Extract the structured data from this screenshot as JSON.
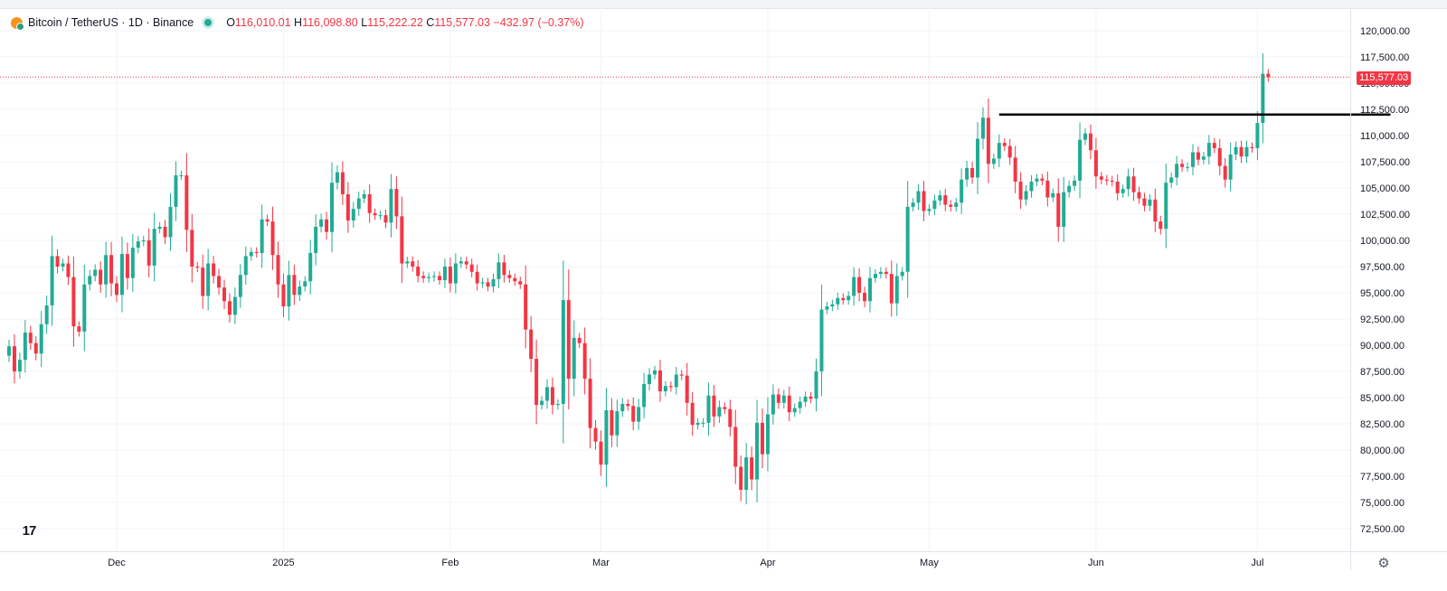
{
  "header": {
    "symbol": "Bitcoin / TetherUS · 1D · Binance",
    "open_label": "O",
    "open": "116,010.01",
    "high_label": "H",
    "high": "116,098.80",
    "low_label": "L",
    "low": "115,222.22",
    "close_label": "C",
    "close": "115,577.03",
    "change": "−432.97 (−0.37%)"
  },
  "icons": {
    "coin": "bitcoin-tether-icon",
    "status": "market-open-dot-icon",
    "logo": "tradingview-logo-icon",
    "logo_text": "17",
    "settings": "gear-icon",
    "settings_glyph": "⚙"
  },
  "colors": {
    "up": "#22ab94",
    "down": "#f23645",
    "grid": "#f0f3fa",
    "text": "#131722",
    "axis_text": "#131722",
    "resistance": "#000000"
  },
  "last_price_tag": "115,577.03",
  "chart_data": {
    "type": "candlestick",
    "title": "Bitcoin / TetherUS · 1D · Binance",
    "ylim": [
      70000,
      122000
    ],
    "y_ticks": [
      72500,
      75000,
      77500,
      80000,
      82500,
      85000,
      87500,
      90000,
      92500,
      95000,
      97500,
      100000,
      102500,
      105000,
      107500,
      110000,
      112500,
      115000,
      117500,
      120000
    ],
    "y_tick_labels": [
      "72,500.00",
      "75,000.00",
      "77,500.00",
      "80,000.00",
      "82,500.00",
      "85,000.00",
      "87,500.00",
      "90,000.00",
      "92,500.00",
      "95,000.00",
      "97,500.00",
      "100,000.00",
      "102,500.00",
      "105,000.00",
      "107,500.00",
      "110,000.00",
      "112,500.00",
      "115,000.00",
      "117,500.00",
      "120,000.00"
    ],
    "x_labels": [
      {
        "label": "Dec",
        "index": 20
      },
      {
        "label": "2025",
        "index": 51
      },
      {
        "label": "Feb",
        "index": 82
      },
      {
        "label": "Mar",
        "index": 110
      },
      {
        "label": "Apr",
        "index": 141
      },
      {
        "label": "May",
        "index": 171
      },
      {
        "label": "Jun",
        "index": 202
      },
      {
        "label": "Jul",
        "index": 232
      }
    ],
    "last_price": 115577.03,
    "resistance_level": 112000,
    "resistance_from_index": 184,
    "resistance_to_index": 250,
    "closes": [
      89900,
      87500,
      88600,
      91200,
      90200,
      89200,
      92000,
      93800,
      98500,
      97500,
      97800,
      96500,
      91800,
      91300,
      95800,
      96600,
      97200,
      95800,
      98600,
      95900,
      94800,
      98700,
      96400,
      99300,
      99900,
      100000,
      97600,
      101100,
      101300,
      100300,
      103200,
      106200,
      106200,
      101000,
      97500,
      97400,
      94700,
      97800,
      96600,
      95500,
      94200,
      92900,
      94600,
      96700,
      98500,
      98900,
      98800,
      102000,
      101800,
      98600,
      95800,
      93700,
      96700,
      94800,
      95600,
      96100,
      98800,
      101300,
      102000,
      100800,
      105500,
      106500,
      104400,
      101900,
      103000,
      104000,
      104400,
      102600,
      102400,
      102400,
      101700,
      104900,
      102300,
      97800,
      98000,
      97500,
      96600,
      96400,
      96500,
      96600,
      96200,
      97500,
      95900,
      97800,
      98000,
      97700,
      97000,
      95900,
      96000,
      95600,
      96300,
      97900,
      96700,
      96400,
      96100,
      95800,
      91500,
      88700,
      84300,
      84700,
      86000,
      84300,
      84400,
      94300,
      86800,
      90700,
      90200,
      86800,
      82100,
      80800,
      78600,
      83800,
      81400,
      83700,
      84400,
      84200,
      82700,
      84100,
      86300,
      87200,
      87600,
      85600,
      86100,
      86000,
      87200,
      87100,
      84500,
      82400,
      82600,
      82600,
      85200,
      83200,
      84100,
      83900,
      82200,
      78400,
      76200,
      79300,
      77200,
      82600,
      79600,
      83400,
      85300,
      84500,
      85200,
      83600,
      84000,
      84600,
      85100,
      84900,
      87500,
      93400,
      93700,
      93900,
      94500,
      94300,
      94700,
      96500,
      95000,
      94200,
      96400,
      96800,
      97000,
      96800,
      94000,
      96600,
      97000,
      103200,
      103600,
      104700,
      102800,
      103000,
      103800,
      104300,
      103400,
      103200,
      103600,
      105800,
      106900,
      106000,
      109700,
      111700,
      107300,
      107800,
      109300,
      109000,
      107900,
      105600,
      103900,
      104700,
      105600,
      105900,
      105700,
      104100,
      104500,
      101300,
      104600,
      105200,
      105700,
      109600,
      110200,
      108600,
      106100,
      105800,
      105700,
      105600,
      104500,
      104900,
      106100,
      104600,
      104000,
      103300,
      103900,
      101800,
      101100,
      105500,
      106000,
      107300,
      107000,
      107000,
      108400,
      107700,
      108000,
      109300,
      108800,
      107100,
      105800,
      108200,
      108900,
      108000,
      108900,
      108800,
      111200,
      115900,
      115577
    ]
  }
}
